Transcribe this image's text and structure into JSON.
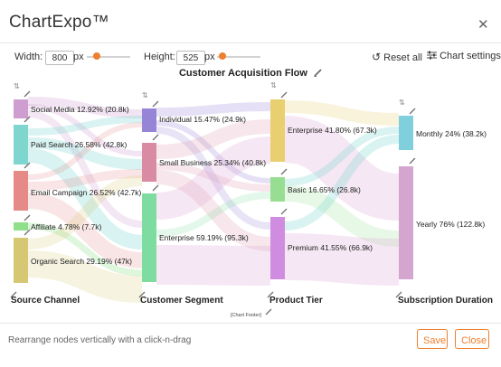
{
  "app": {
    "title": "ChartExpo™",
    "close_glyph": "✕"
  },
  "toolbar": {
    "width_label": "Width:",
    "width_value": "800",
    "width_unit": "px",
    "height_label": "Height:",
    "height_value": "525",
    "height_unit": "px",
    "reset_label": "Reset all",
    "settings_label": "Chart settings"
  },
  "chart": {
    "title": "Customer Acquisition Flow",
    "footer_placeholder": "[Chart Footer]",
    "columns": [
      "Source Channel",
      "Customer Segment",
      "Product Tier",
      "Subscription Duration"
    ],
    "nodes": [
      {
        "label": "Social Media 12.92% (20.8k)",
        "color": "#cf9ed0"
      },
      {
        "label": "Paid Search 26.58% (42.8k)",
        "color": "#7fd6cf"
      },
      {
        "label": "Email Campaign 26.52% (42.7k)",
        "color": "#e58a87"
      },
      {
        "label": "Affiliate 4.78% (7.7k)",
        "color": "#8fe08a"
      },
      {
        "label": "Organic Search 29.19% (47k)",
        "color": "#d6c872"
      },
      {
        "label": "Individual 15.47% (24.9k)",
        "color": "#9684d6"
      },
      {
        "label": "Small Business 25.34% (40.8k)",
        "color": "#d98ba3"
      },
      {
        "label": "Enterprise 59.19% (95.3k)",
        "color": "#7fdca0"
      },
      {
        "label": "Enterprise 41.80% (67.3k)",
        "color": "#e8cf70"
      },
      {
        "label": "Basic 16.65% (26.8k)",
        "color": "#97de92"
      },
      {
        "label": "Premium 41.55% (66.9k)",
        "color": "#cf8ce0"
      },
      {
        "label": "Monthly 24% (38.2k)",
        "color": "#7fd0dc"
      },
      {
        "label": "Yearly 76% (122.8k)",
        "color": "#d3a5cf"
      }
    ]
  },
  "footer": {
    "hint": "Rearrange nodes vertically with a click-n-drag",
    "save_label": "Save",
    "close_label": "Close"
  }
}
